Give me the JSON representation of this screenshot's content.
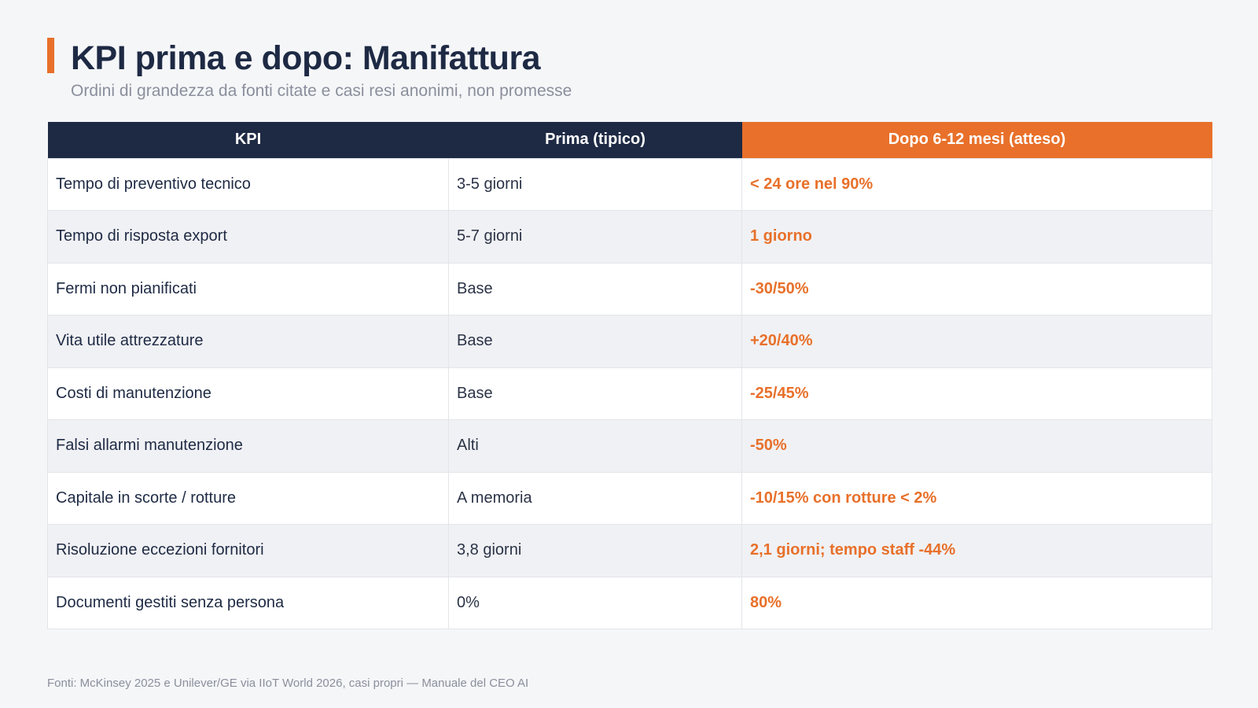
{
  "header": {
    "title": "KPI prima e dopo: Manifattura",
    "subtitle": "Ordini di grandezza da fonti citate e casi resi anonimi, non promesse"
  },
  "colors": {
    "accent": "#e8702a",
    "navy": "#1e2a44"
  },
  "table": {
    "columns": [
      "KPI",
      "Prima (tipico)",
      "Dopo 6-12 mesi (atteso)"
    ],
    "rows": [
      [
        "Tempo di preventivo tecnico",
        "3-5 giorni",
        "< 24 ore nel 90%"
      ],
      [
        "Tempo di risposta export",
        "5-7 giorni",
        "1 giorno"
      ],
      [
        "Fermi non pianificati",
        "Base",
        "-30/50%"
      ],
      [
        "Vita utile attrezzature",
        "Base",
        "+20/40%"
      ],
      [
        "Costi di manutenzione",
        "Base",
        "-25/45%"
      ],
      [
        "Falsi allarmi manutenzione",
        "Alti",
        "-50%"
      ],
      [
        "Capitale in scorte / rotture",
        "A memoria",
        "-10/15% con rotture < 2%"
      ],
      [
        "Risoluzione eccezioni fornitori",
        "3,8 giorni",
        "2,1 giorni; tempo staff -44%"
      ],
      [
        "Documenti gestiti senza persona",
        "0%",
        "80%"
      ]
    ]
  },
  "footer": {
    "source": "Fonti: McKinsey 2025 e Unilever/GE via IIoT World 2026, casi propri — Manuale del CEO AI"
  }
}
